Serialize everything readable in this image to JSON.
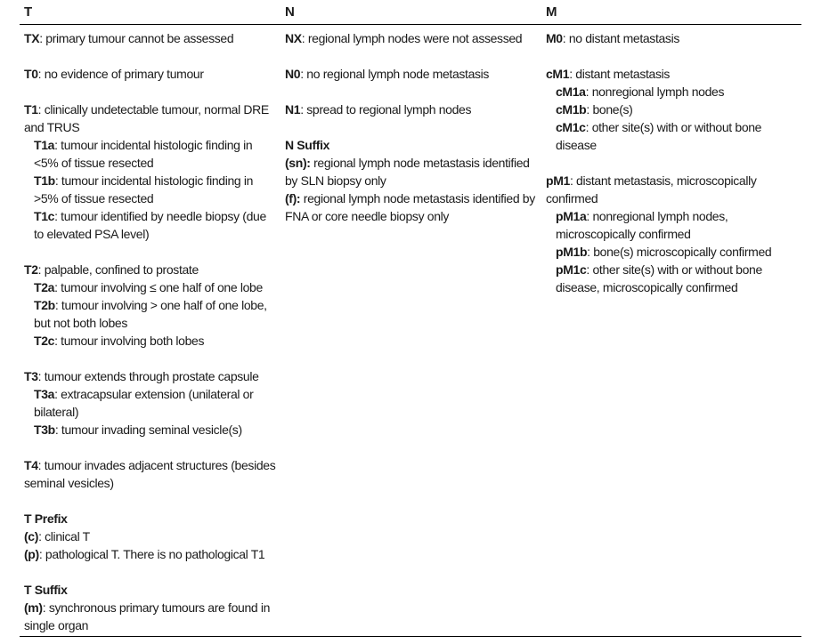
{
  "headers": {
    "t": "T",
    "n": "N",
    "m": "M"
  },
  "t_col": {
    "tx": {
      "key": "TX",
      "text": ":  primary tumour cannot be assessed"
    },
    "t0": {
      "key": "T0",
      "text": ":  no evidence of primary tumour"
    },
    "t1": {
      "key": "T1",
      "text": ":  clinically undetectable tumour, normal DRE and TRUS"
    },
    "t1a": {
      "key": "T1a",
      "text": ": tumour incidental histologic finding in <5% of tissue resected"
    },
    "t1b": {
      "key": "T1b",
      "text": ": tumour incidental histologic finding in >5% of tissue resected"
    },
    "t1c": {
      "key": "T1c",
      "text": ": tumour identified by needle biopsy (due to elevated PSA level)"
    },
    "t2": {
      "key": "T2",
      "text": ": palpable, confined to prostate"
    },
    "t2a": {
      "key": "T2a",
      "text": ": tumour involving ≤ one half of one lobe"
    },
    "t2b": {
      "key": "T2b",
      "text": ": tumour involving > one half of one lobe, but not both lobes"
    },
    "t2c": {
      "key": "T2c",
      "text": ": tumour involving both lobes"
    },
    "t3": {
      "key": "T3",
      "text": ": tumour extends through prostate capsule"
    },
    "t3a": {
      "key": "T3a",
      "text": ": extracapsular extension (unilateral or bilateral)"
    },
    "t3b": {
      "key": "T3b",
      "text": ": tumour invading seminal vesicle(s)"
    },
    "t4": {
      "key": "T4",
      "text": ": tumour invades adjacent structures (besides seminal vesicles)"
    },
    "prefix_title": "T Prefix",
    "prefix_c": {
      "key": "(c)",
      "text": ": clinical T"
    },
    "prefix_p": {
      "key": "(p)",
      "text": ": pathological T. There is no pathological T1"
    },
    "suffix_title": "T Suffix",
    "suffix_m": {
      "key": "(m)",
      "text": ": synchronous primary tumours are found in single organ"
    }
  },
  "n_col": {
    "nx": {
      "key": "NX",
      "text": ": regional lymph nodes were not assessed"
    },
    "n0": {
      "key": "N0",
      "text": ": no regional lymph node metastasis"
    },
    "n1": {
      "key": "N1",
      "text": ": spread to regional lymph nodes"
    },
    "suffix_title": "N Suffix",
    "suffix_sn": {
      "key": "(sn):",
      "text": " regional lymph node metastasis identified by SLN biopsy only"
    },
    "suffix_f": {
      "key": "(f):",
      "text": " regional lymph node metastasis identified by FNA or core needle biopsy only"
    }
  },
  "m_col": {
    "m0": {
      "key": "M0",
      "text": ": no distant metastasis"
    },
    "cm1": {
      "key": "cM1",
      "text": ": distant metastasis"
    },
    "cm1a": {
      "key": "cM1a",
      "text": ": nonregional lymph nodes"
    },
    "cm1b": {
      "key": "cM1b",
      "text": ": bone(s)"
    },
    "cm1c": {
      "key": "cM1c",
      "text": ": other site(s) with or without bone disease"
    },
    "pm1": {
      "key": "pM1",
      "text": ": distant metastasis, microscopically confirmed"
    },
    "pm1a": {
      "key": "pM1a",
      "text": ": nonregional lymph nodes, microscopically confirmed"
    },
    "pm1b": {
      "key": "pM1b",
      "text": ": bone(s) microscopically confirmed"
    },
    "pm1c": {
      "key": "pM1c",
      "text": ": other site(s) with or without bone disease, microscopically confirmed"
    }
  }
}
